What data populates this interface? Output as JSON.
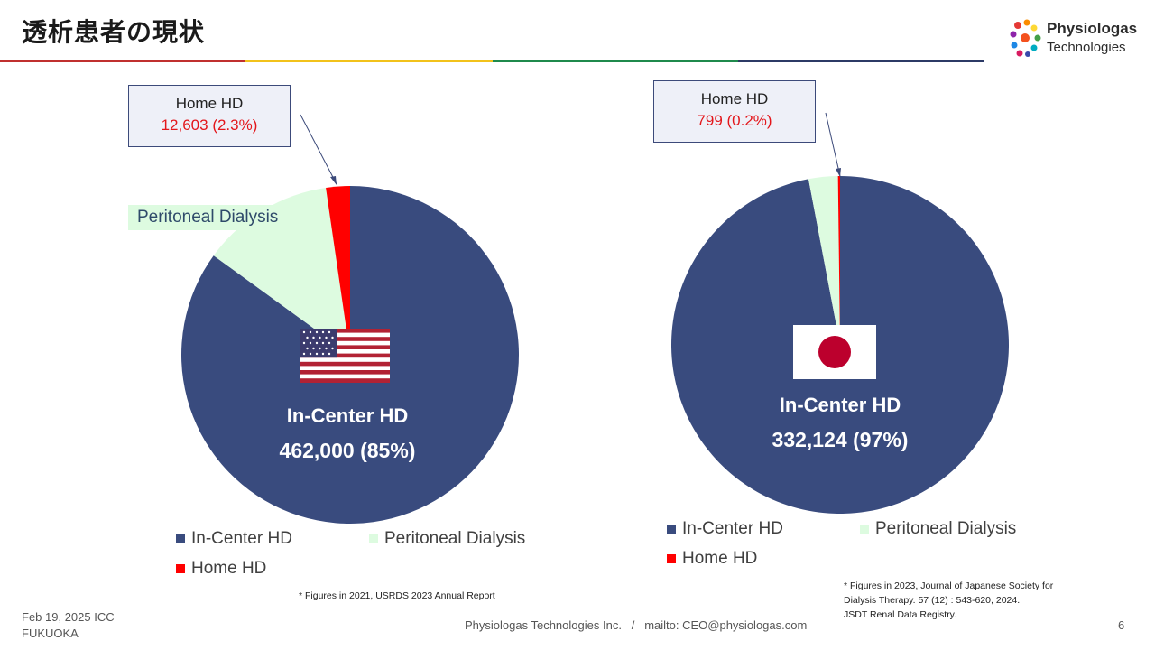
{
  "slide": {
    "title": "透析患者の現状",
    "page_number": "6",
    "date_line1": "Feb 19, 2025 ICC",
    "date_line2": "FUKUOKA",
    "footer_center": "Physiologas Technologies Inc.   /   mailto: CEO@physiologas.com",
    "accent_bars": [
      "#c0302f",
      "#f2c21b",
      "#1f8a4c",
      "#2c3a66"
    ]
  },
  "logo": {
    "name": "Physiologas",
    "sub": "Technologies"
  },
  "colors": {
    "in_center": "#394b7e",
    "peritoneal": "#ddfbe0",
    "home": "#ff0000"
  },
  "left": {
    "flag": "us-flag-icon",
    "callout_title": "Home HD",
    "callout_value": "12,603 (2.3%)",
    "pd_label": "Peritoneal Dialysis",
    "center_title": "In-Center HD",
    "center_value": "462,000 (85%)",
    "legend": [
      "In-Center HD",
      "Peritoneal Dialysis",
      "Home HD"
    ],
    "note": "* Figures in 2021, USRDS 2023 Annual Report"
  },
  "right": {
    "flag": "japan-flag-icon",
    "callout_title": "Home HD",
    "callout_value": "799 (0.2%)",
    "center_title": "In-Center HD",
    "center_value": "332,124 (97%)",
    "legend": [
      "In-Center HD",
      "Peritoneal Dialysis",
      "Home HD"
    ],
    "note_line1": "* Figures in 2023, Journal of Japanese Society for",
    "note_line2": "Dialysis Therapy. 57 (12) : 543-620, 2024.",
    "note_line3": "JSDT Renal Data Registry."
  },
  "chart_data": [
    {
      "type": "pie",
      "categories": [
        "In-Center HD",
        "Peritoneal Dialysis",
        "Home HD"
      ],
      "values": [
        85,
        12.7,
        2.3
      ],
      "legend": "bottom"
    },
    {
      "type": "pie",
      "categories": [
        "In-Center HD",
        "Peritoneal Dialysis",
        "Home HD"
      ],
      "values": [
        97,
        2.8,
        0.2
      ],
      "legend": "bottom"
    }
  ]
}
